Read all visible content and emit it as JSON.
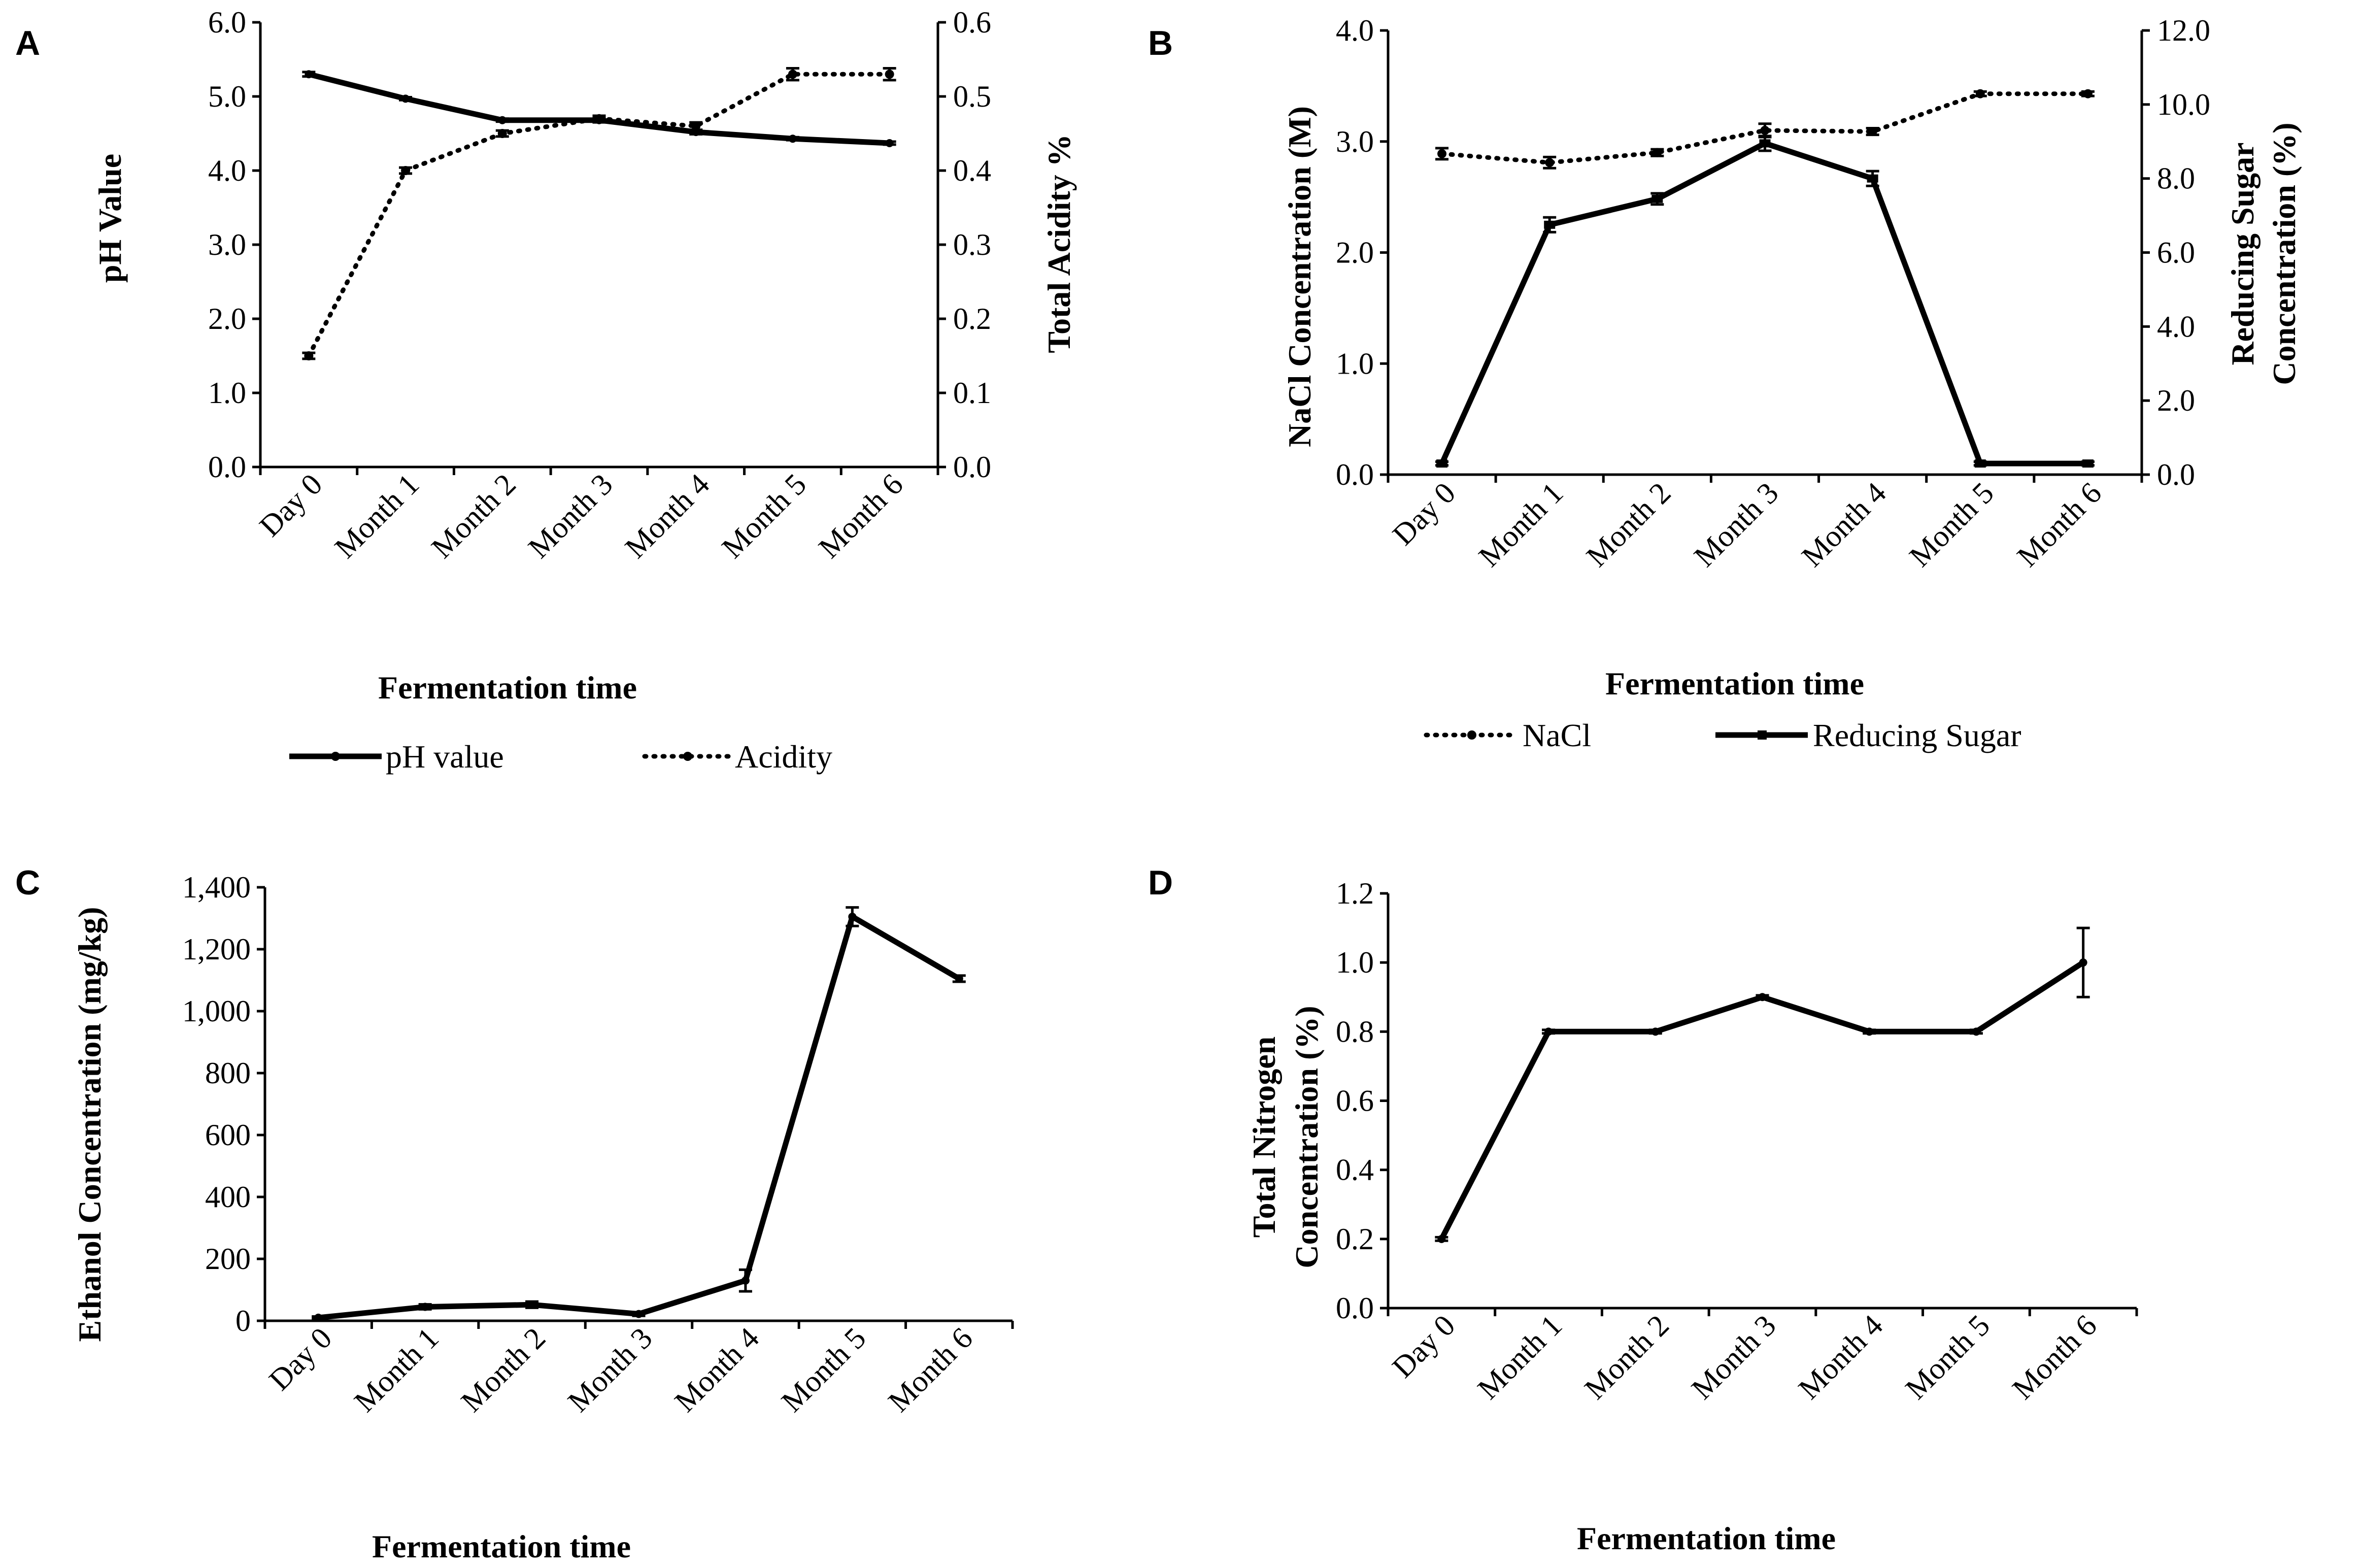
{
  "chart_data": [
    {
      "panel": "A",
      "type": "line",
      "categories": [
        "Day 0",
        "Month 1",
        "Month 2",
        "Month 3",
        "Month 4",
        "Month 5",
        "Month 6"
      ],
      "xlabel": "Fermentation time",
      "ylabel": "pH Value",
      "ylabel_right": "Total Acidity %",
      "ylim": [
        0,
        6
      ],
      "ylim_right": [
        0,
        0.6
      ],
      "yticks": [
        "0.0",
        "1.0",
        "2.0",
        "3.0",
        "4.0",
        "5.0",
        "6.0"
      ],
      "yticks_right": [
        "0.0",
        "0.1",
        "0.2",
        "0.3",
        "0.4",
        "0.5",
        "0.6"
      ],
      "legend_position": "bottom",
      "series": [
        {
          "name": "pH value",
          "axis": "left",
          "style": "solid",
          "values": [
            5.3,
            4.97,
            4.68,
            4.68,
            4.52,
            4.43,
            4.37
          ],
          "errors": [
            0.03,
            0.02,
            0.02,
            0.03,
            0.03,
            0.02,
            0.02
          ]
        },
        {
          "name": "Acidity",
          "axis": "right",
          "style": "dotted",
          "values": [
            0.15,
            0.4,
            0.45,
            0.47,
            0.46,
            0.53,
            0.53
          ],
          "errors": [
            0.004,
            0.004,
            0.004,
            0.004,
            0.005,
            0.008,
            0.008
          ]
        }
      ]
    },
    {
      "panel": "B",
      "type": "line",
      "categories": [
        "Day 0",
        "Month 1",
        "Month 2",
        "Month 3",
        "Month 4",
        "Month 5",
        "Month 6"
      ],
      "xlabel": "Fermentation time",
      "ylabel": "NaCl Concentration (M)",
      "ylabel_right": [
        "Reducing Sugar",
        "Concentration (%)"
      ],
      "ylim": [
        0,
        4
      ],
      "ylim_right": [
        0,
        12
      ],
      "yticks": [
        "0.0",
        "1.0",
        "2.0",
        "3.0",
        "4.0"
      ],
      "yticks_right": [
        "0.0",
        "2.0",
        "4.0",
        "6.0",
        "8.0",
        "10.0",
        "12.0"
      ],
      "legend_position": "bottom",
      "series": [
        {
          "name": "NaCl",
          "axis": "left",
          "style": "dotted",
          "values": [
            2.89,
            2.81,
            2.9,
            3.1,
            3.09,
            3.43,
            3.43
          ],
          "errors": [
            0.05,
            0.05,
            0.03,
            0.06,
            0.03,
            0.02,
            0.02
          ]
        },
        {
          "name": "Reducing Sugar",
          "axis": "right",
          "style": "solid",
          "values": [
            0.3,
            6.75,
            7.45,
            8.95,
            8.0,
            0.3,
            0.3
          ],
          "errors": [
            0.05,
            0.2,
            0.15,
            0.2,
            0.2,
            0.05,
            0.05
          ]
        }
      ]
    },
    {
      "panel": "C",
      "type": "line",
      "categories": [
        "Day 0",
        "Month 1",
        "Month 2",
        "Month 3",
        "Month 4",
        "Month 5",
        "Month 6"
      ],
      "xlabel": "Fermentation time",
      "ylabel": "Ethanol Concentration (mg/kg)",
      "ylim": [
        0,
        1400
      ],
      "yticks": [
        "0",
        "200",
        "400",
        "600",
        "800",
        "1,000",
        "1,200",
        "1,400"
      ],
      "series": [
        {
          "name": "Ethanol",
          "style": "solid",
          "values": [
            10,
            45,
            52,
            22,
            130,
            1305,
            1105
          ],
          "errors": [
            4,
            8,
            10,
            6,
            35,
            30,
            10
          ]
        }
      ]
    },
    {
      "panel": "D",
      "type": "line",
      "categories": [
        "Day 0",
        "Month 1",
        "Month 2",
        "Month 3",
        "Month 4",
        "Month 5",
        "Month 6"
      ],
      "xlabel": "Fermentation time",
      "ylabel": [
        "Total Nitrogen",
        "Concentration (%)"
      ],
      "ylim": [
        0,
        1.2
      ],
      "yticks": [
        "0.0",
        "0.2",
        "0.4",
        "0.6",
        "0.8",
        "1.0",
        "1.2"
      ],
      "series": [
        {
          "name": "Total Nitrogen",
          "style": "solid",
          "values": [
            0.2,
            0.8,
            0.8,
            0.9,
            0.8,
            0.8,
            1.0
          ],
          "errors": [
            0.005,
            0.005,
            0.005,
            0.005,
            0.005,
            0.005,
            0.1
          ]
        }
      ]
    }
  ]
}
